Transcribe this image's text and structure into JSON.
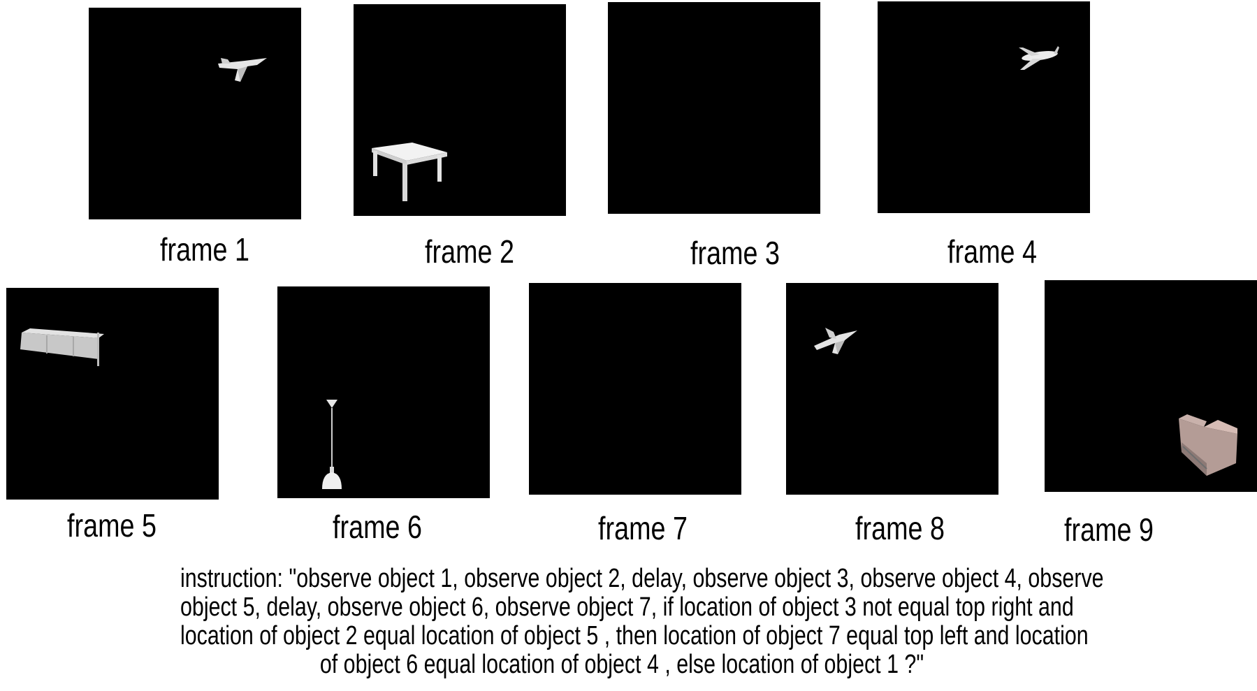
{
  "frames": [
    {
      "label": "frame 1",
      "object": "fighter-jet"
    },
    {
      "label": "frame 2",
      "object": "table"
    },
    {
      "label": "frame 3",
      "object": ""
    },
    {
      "label": "frame 4",
      "object": "airliner"
    },
    {
      "label": "frame 5",
      "object": "bench"
    },
    {
      "label": "frame 6",
      "object": "pendant-lamp"
    },
    {
      "label": "frame 7",
      "object": ""
    },
    {
      "label": "frame 8",
      "object": "fighter-jet"
    },
    {
      "label": "frame 9",
      "object": "sofa"
    }
  ],
  "instruction": {
    "lines": [
      "instruction: \"observe object 1, observe object 2, delay, observe object 3, observe object 4, observe",
      "object 5, delay, observe object 6, observe object 7, if location of object 3 not equal top right and",
      "location of object 2 equal location of object 5 , then location of object 7 equal top left and location",
      "of object 6 equal location of object 4 , else location of object 1 ?\""
    ]
  },
  "colors": {
    "frame_bg": "#000000",
    "object": "#e8e8e8",
    "text": "#000000"
  }
}
